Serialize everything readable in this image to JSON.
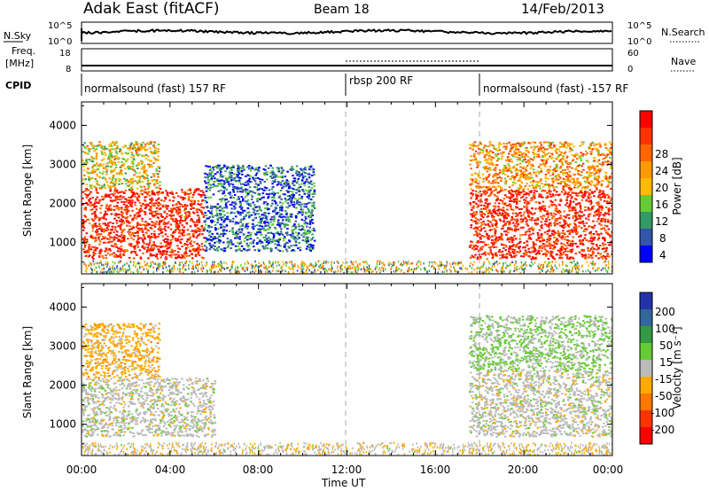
{
  "header": {
    "radar_title": "Adak East (fitACF)",
    "beam": "Beam 18",
    "date": "14/Feb/2013"
  },
  "noise_panel": {
    "left_label": "N.Sky",
    "right_label": "N.Search",
    "left_ticks": [
      "10^5",
      "10^0"
    ],
    "right_ticks": [
      "10^5",
      "10^0"
    ]
  },
  "freq_panel": {
    "left_label_1": "Freq.",
    "left_label_2": "[MHz]",
    "left_ticks": [
      "18",
      "8"
    ],
    "right_label": "Nave",
    "right_ticks": [
      "60",
      "0"
    ]
  },
  "cpid": {
    "label": "CPID",
    "segments": [
      {
        "name": "normalsound (fast) 157 RF",
        "start_hour": 0
      },
      {
        "name": "rbsp 200 RF",
        "start_hour": 12
      },
      {
        "name": "normalsound (fast) -157 RF",
        "start_hour": 18
      }
    ]
  },
  "x_axis": {
    "label": "Time UT",
    "ticks": [
      "00:00",
      "04:00",
      "08:00",
      "12:00",
      "16:00",
      "20:00",
      "00:00"
    ]
  },
  "power_panel": {
    "ylabel": "Slant Range [km]",
    "yticks": [
      "1000",
      "2000",
      "3000",
      "4000"
    ],
    "colorbar_label": "Power [dB]",
    "colorbar_ticks": [
      "28",
      "24",
      "20",
      "16",
      "12",
      "8",
      "4"
    ],
    "colors": [
      "#ff0000",
      "#ff3300",
      "#ff6600",
      "#ff9900",
      "#ffbb00",
      "#66cc33",
      "#339966",
      "#3355aa",
      "#0000ff"
    ]
  },
  "velocity_panel": {
    "ylabel": "Slant Range [km]",
    "yticks": [
      "1000",
      "2000",
      "3000",
      "4000"
    ],
    "colorbar_label": "Velocity [m s⁻¹]",
    "colorbar_ticks": [
      "200",
      "100",
      "50",
      "15",
      "-15",
      "-50",
      "-100",
      "-200"
    ],
    "colors": [
      "#2233aa",
      "#336699",
      "#339944",
      "#66cc33",
      "#bbbbbb",
      "#ffaa00",
      "#ff7700",
      "#ff3300",
      "#ff0000"
    ]
  },
  "chart_data": [
    {
      "type": "heatmap",
      "title": "Power",
      "xlabel": "Time UT",
      "ylabel": "Slant Range [km]",
      "xlim_hours": [
        0,
        24
      ],
      "ylim": [
        200,
        4600
      ],
      "colorbar_label": "Power [dB]",
      "colorbar_range": [
        0,
        32
      ],
      "regions": [
        {
          "hours": [
            0,
            5.5
          ],
          "range_km": [
            600,
            2400
          ],
          "power_db": 28
        },
        {
          "hours": [
            0,
            3.5
          ],
          "range_km": [
            2400,
            3600
          ],
          "power_db": 16
        },
        {
          "hours": [
            5.5,
            10.5
          ],
          "range_km": [
            800,
            3000
          ],
          "power_db": 6
        },
        {
          "hours": [
            17.5,
            24
          ],
          "range_km": [
            600,
            2400
          ],
          "power_db": 28
        },
        {
          "hours": [
            17.5,
            24
          ],
          "range_km": [
            2400,
            3600
          ],
          "power_db": 20
        }
      ]
    },
    {
      "type": "heatmap",
      "title": "Velocity",
      "xlabel": "Time UT",
      "ylabel": "Slant Range [km]",
      "xlim_hours": [
        0,
        24
      ],
      "ylim": [
        200,
        4600
      ],
      "colorbar_label": "Velocity [m s⁻¹]",
      "colorbar_range": [
        -240,
        240
      ],
      "regions": [
        {
          "hours": [
            0,
            6
          ],
          "range_km": [
            700,
            2200
          ],
          "velocity": 0
        },
        {
          "hours": [
            0,
            3.5
          ],
          "range_km": [
            2200,
            3600
          ],
          "velocity": -50
        },
        {
          "hours": [
            17.5,
            24
          ],
          "range_km": [
            700,
            2400
          ],
          "velocity": 0
        },
        {
          "hours": [
            17.5,
            24
          ],
          "range_km": [
            2400,
            3800
          ],
          "velocity": 30
        }
      ]
    }
  ]
}
